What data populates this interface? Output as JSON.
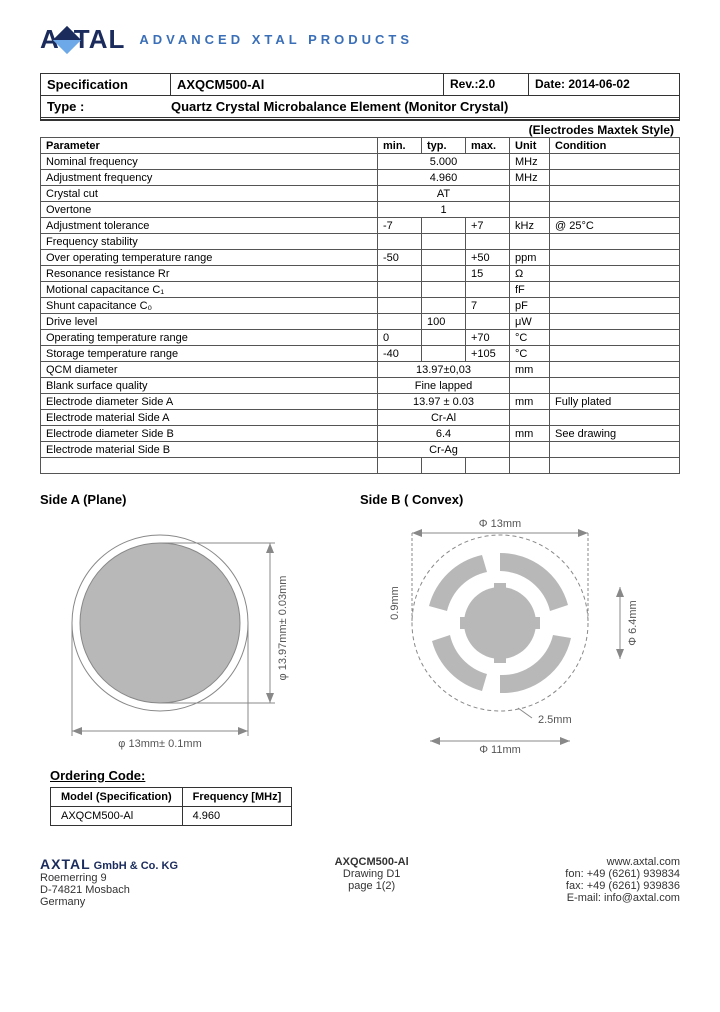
{
  "header": {
    "brand": "AXTAL",
    "tagline": "ADVANCED  XTAL  PRODUCTS"
  },
  "spec": {
    "label": "Specification",
    "model": "AXQCM500-Al",
    "rev_label": "Rev.:",
    "rev": "2.0",
    "date_label": "Date:",
    "date": "2014-06-02",
    "type_label": "Type :",
    "type": "Quartz Crystal Microbalance Element (Monitor Crystal)",
    "subtype": "(Electrodes Maxtek Style)"
  },
  "table": {
    "headers": {
      "param": "Parameter",
      "min": "min.",
      "typ": "typ.",
      "max": "max.",
      "unit": "Unit",
      "cond": "Condition"
    },
    "rows": [
      {
        "p": "Nominal frequency",
        "min": "",
        "typ": "5.000",
        "max": "",
        "unit": "MHz",
        "cond": "",
        "span": true
      },
      {
        "p": "Adjustment frequency",
        "min": "",
        "typ": "4.960",
        "max": "",
        "unit": "MHz",
        "cond": "",
        "span": true
      },
      {
        "p": "Crystal cut",
        "min": "",
        "typ": "AT",
        "max": "",
        "unit": "",
        "cond": "",
        "span": true
      },
      {
        "p": "Overtone",
        "min": "",
        "typ": "1",
        "max": "",
        "unit": "",
        "cond": "",
        "span": true
      },
      {
        "p": "Adjustment tolerance",
        "min": "-7",
        "typ": "",
        "max": "+7",
        "unit": "kHz",
        "cond": "@ 25°C"
      },
      {
        "p": "Frequency stability",
        "min": "",
        "typ": "",
        "max": "",
        "unit": "",
        "cond": ""
      },
      {
        "p": "Over operating temperature range",
        "min": "-50",
        "typ": "",
        "max": "+50",
        "unit": "ppm",
        "cond": ""
      },
      {
        "p": "Resonance resistance Rr",
        "min": "",
        "typ": "",
        "max": "15",
        "unit": "Ω",
        "cond": ""
      },
      {
        "p": "Motional capacitance C₁",
        "min": "",
        "typ": "",
        "max": "",
        "unit": "fF",
        "cond": ""
      },
      {
        "p": "Shunt capacitance C₀",
        "min": "",
        "typ": "",
        "max": "7",
        "unit": "pF",
        "cond": ""
      },
      {
        "p": "Drive level",
        "min": "",
        "typ": "100",
        "max": "",
        "unit": "μW",
        "cond": ""
      },
      {
        "p": "Operating temperature range",
        "min": "0",
        "typ": "",
        "max": "+70",
        "unit": "°C",
        "cond": ""
      },
      {
        "p": "Storage temperature range",
        "min": "-40",
        "typ": "",
        "max": "+105",
        "unit": "°C",
        "cond": ""
      },
      {
        "p": "QCM diameter",
        "min": "",
        "typ": "13.97±0,03",
        "max": "",
        "unit": "mm",
        "cond": "",
        "span": true,
        "dbl": true
      },
      {
        "p": "Blank surface quality",
        "min": "",
        "typ": "Fine lapped",
        "max": "",
        "unit": "",
        "cond": "",
        "span": true
      },
      {
        "p": "Electrode diameter Side A",
        "min": "",
        "typ": "13.97 ± 0.03",
        "max": "",
        "unit": "mm",
        "cond": "Fully plated",
        "span": true
      },
      {
        "p": "Electrode material Side A",
        "min": "",
        "typ": "Cr-Al",
        "max": "",
        "unit": "",
        "cond": "",
        "span": true
      },
      {
        "p": "Electrode diameter Side B",
        "min": "",
        "typ": "6.4",
        "max": "",
        "unit": "mm",
        "cond": "See drawing",
        "span": true
      },
      {
        "p": "Electrode material Side B",
        "min": "",
        "typ": "Cr-Ag",
        "max": "",
        "unit": "",
        "cond": "",
        "span": true
      },
      {
        "p": "",
        "min": "",
        "typ": "",
        "max": "",
        "unit": "",
        "cond": ""
      }
    ]
  },
  "diagrams": {
    "sideA": {
      "title": "Side A  (Plane)",
      "outer_diameter": 13.0,
      "inner_diameter": 13.97,
      "dim1": "φ 13.97mm± 0.03mm",
      "dim2": "φ 13mm± 0.1mm",
      "colors": {
        "outer": "#b8b8b8",
        "stroke": "#888"
      }
    },
    "sideB": {
      "title": "Side B ( Convex)",
      "d13": "Φ 13mm",
      "d64": "Φ 6.4mm",
      "d11": "Φ 11mm",
      "d25": "2.5mm",
      "d09": "0.9mm",
      "colors": {
        "fill": "#b8b8b8",
        "stroke": "#888"
      }
    }
  },
  "ordering": {
    "title": "Ordering Code:",
    "h1": "Model (Specification)",
    "h2": "Frequency [MHz]",
    "model": "AXQCM500-Al",
    "freq": "4.960"
  },
  "footer": {
    "company_brand": "AXTAL",
    "company_suffix": " GmbH & Co. KG",
    "addr1": "Roemerring 9",
    "addr2": "D-74821 Mosbach",
    "addr3": "Germany",
    "center_model": "AXQCM500-Al",
    "center_drawing": "Drawing D1",
    "center_page": "page 1(2)",
    "web": "www.axtal.com",
    "fon": "fon: +49 (6261) 939834",
    "fax": "fax: +49 (6261) 939836",
    "email": "E-mail: info@axtal.com"
  }
}
